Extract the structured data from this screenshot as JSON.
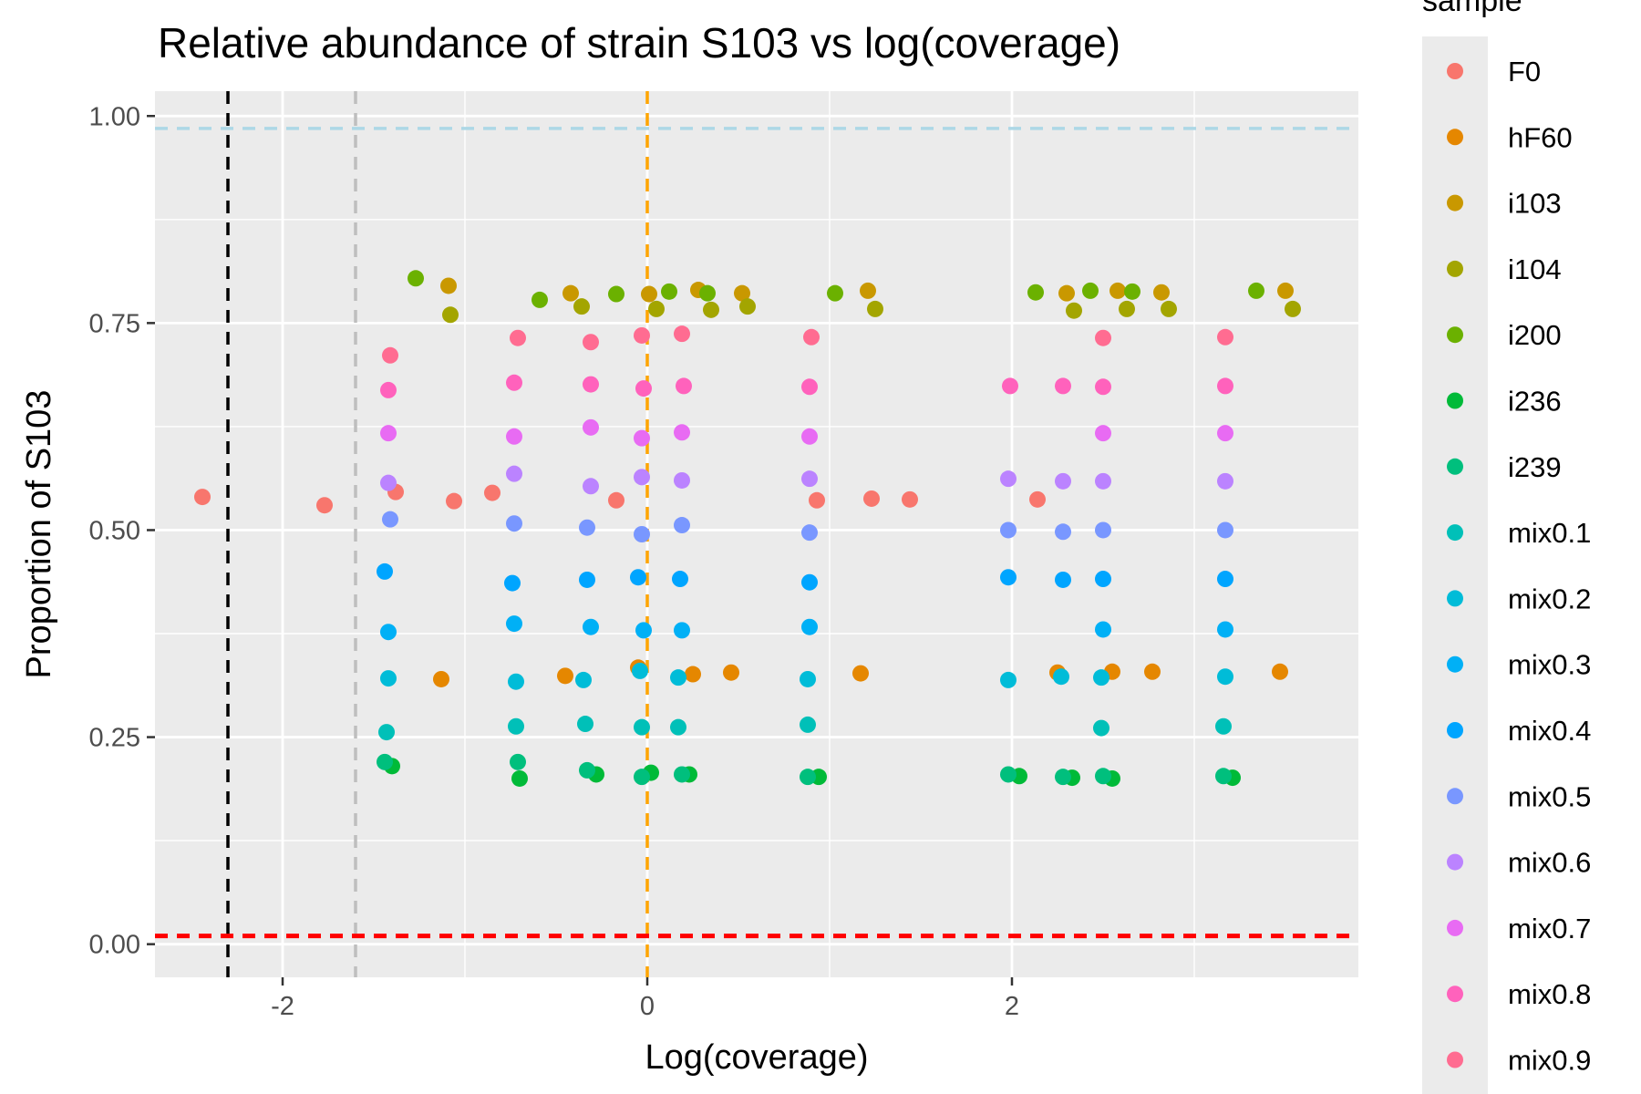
{
  "chart_data": {
    "type": "scatter",
    "title": "Relative abundance of strain S103 vs log(coverage)",
    "xlabel": "Log(coverage)",
    "ylabel": "Proportion of S103",
    "xlim": [
      -2.7,
      3.9
    ],
    "ylim": [
      -0.04,
      1.03
    ],
    "x_ticks": [
      -2,
      0,
      2
    ],
    "x_tick_labels": [
      "-2",
      "0",
      "2"
    ],
    "y_ticks": [
      0,
      0.25,
      0.5,
      0.75,
      1
    ],
    "y_tick_labels": [
      "0.00",
      "0.25",
      "0.50",
      "0.75",
      "1.00"
    ],
    "grid": true,
    "panel_background": "#ebebeb",
    "legend": {
      "title": "sample",
      "placement": "right"
    },
    "reference_lines": [
      {
        "orientation": "vertical",
        "value": -2.3,
        "color": "#000000"
      },
      {
        "orientation": "vertical",
        "value": -1.6,
        "color": "#bebebe"
      },
      {
        "orientation": "vertical",
        "value": 0.0,
        "color": "#ffa500"
      },
      {
        "orientation": "horizontal",
        "value": 0.01,
        "color": "#ff0000"
      },
      {
        "orientation": "horizontal",
        "value": 0.985,
        "color": "#add8e6"
      }
    ],
    "series": [
      {
        "name": "F0",
        "color": "#F8766D",
        "points": [
          [
            -2.44,
            0.54
          ],
          [
            -1.77,
            0.53
          ],
          [
            -1.38,
            0.546
          ],
          [
            -1.06,
            0.535
          ],
          [
            -0.85,
            0.545
          ],
          [
            -0.17,
            0.536
          ],
          [
            0.93,
            0.536
          ],
          [
            1.23,
            0.538
          ],
          [
            1.44,
            0.537
          ],
          [
            2.14,
            0.537
          ]
        ]
      },
      {
        "name": "hF60",
        "color": "#E58700",
        "points": [
          [
            -1.13,
            0.32
          ],
          [
            -0.45,
            0.324
          ],
          [
            -0.05,
            0.334
          ],
          [
            0.25,
            0.326
          ],
          [
            0.46,
            0.328
          ],
          [
            1.17,
            0.327
          ],
          [
            2.25,
            0.328
          ],
          [
            2.55,
            0.329
          ],
          [
            2.77,
            0.329
          ],
          [
            3.47,
            0.329
          ]
        ]
      },
      {
        "name": "i103",
        "color": "#C99800",
        "points": [
          [
            -1.09,
            0.795
          ],
          [
            -0.42,
            0.786
          ],
          [
            0.01,
            0.785
          ],
          [
            0.28,
            0.79
          ],
          [
            0.52,
            0.786
          ],
          [
            1.21,
            0.789
          ],
          [
            2.3,
            0.786
          ],
          [
            2.58,
            0.789
          ],
          [
            2.82,
            0.787
          ],
          [
            3.5,
            0.789
          ]
        ]
      },
      {
        "name": "i104",
        "color": "#A3A500",
        "points": [
          [
            -1.08,
            0.76
          ],
          [
            -0.36,
            0.77
          ],
          [
            0.05,
            0.767
          ],
          [
            0.35,
            0.766
          ],
          [
            0.55,
            0.77
          ],
          [
            1.25,
            0.767
          ],
          [
            2.34,
            0.765
          ],
          [
            2.63,
            0.767
          ],
          [
            2.86,
            0.767
          ],
          [
            3.54,
            0.767
          ]
        ]
      },
      {
        "name": "i200",
        "color": "#6BB100",
        "points": [
          [
            -1.27,
            0.804
          ],
          [
            -0.59,
            0.778
          ],
          [
            -0.17,
            0.785
          ],
          [
            0.12,
            0.788
          ],
          [
            0.33,
            0.786
          ],
          [
            1.03,
            0.786
          ],
          [
            2.13,
            0.787
          ],
          [
            2.43,
            0.789
          ],
          [
            2.66,
            0.788
          ],
          [
            3.34,
            0.789
          ]
        ]
      },
      {
        "name": "i236",
        "color": "#00BA38",
        "points": [
          [
            -1.4,
            0.215
          ],
          [
            -0.7,
            0.2
          ],
          [
            -0.28,
            0.205
          ],
          [
            0.02,
            0.207
          ],
          [
            0.23,
            0.205
          ],
          [
            0.94,
            0.202
          ],
          [
            2.04,
            0.203
          ],
          [
            2.33,
            0.201
          ],
          [
            2.55,
            0.2
          ],
          [
            3.21,
            0.201
          ]
        ]
      },
      {
        "name": "i239",
        "color": "#00BF7D",
        "points": [
          [
            -1.44,
            0.22
          ],
          [
            -0.71,
            0.22
          ],
          [
            -0.33,
            0.21
          ],
          [
            -0.03,
            0.202
          ],
          [
            0.19,
            0.205
          ],
          [
            0.88,
            0.202
          ],
          [
            1.98,
            0.205
          ],
          [
            2.28,
            0.202
          ],
          [
            2.5,
            0.203
          ],
          [
            3.16,
            0.203
          ]
        ]
      },
      {
        "name": "mix0.1",
        "color": "#00C0B8",
        "points": [
          [
            -1.43,
            0.256
          ],
          [
            -0.72,
            0.263
          ],
          [
            -0.34,
            0.266
          ],
          [
            -0.03,
            0.262
          ],
          [
            0.17,
            0.262
          ],
          [
            0.88,
            0.265
          ],
          [
            2.49,
            0.261
          ],
          [
            3.16,
            0.263
          ]
        ]
      },
      {
        "name": "mix0.2",
        "color": "#00BCD8",
        "points": [
          [
            -1.42,
            0.321
          ],
          [
            -0.72,
            0.317
          ],
          [
            -0.35,
            0.319
          ],
          [
            -0.04,
            0.33
          ],
          [
            0.17,
            0.322
          ],
          [
            0.88,
            0.32
          ],
          [
            1.98,
            0.319
          ],
          [
            2.27,
            0.323
          ],
          [
            2.49,
            0.322
          ],
          [
            3.17,
            0.323
          ]
        ]
      },
      {
        "name": "mix0.3",
        "color": "#00B0F6",
        "points": [
          [
            -1.42,
            0.377
          ],
          [
            -0.73,
            0.387
          ],
          [
            -0.31,
            0.383
          ],
          [
            -0.02,
            0.379
          ],
          [
            0.19,
            0.379
          ],
          [
            0.89,
            0.383
          ],
          [
            2.5,
            0.38
          ],
          [
            3.17,
            0.38
          ]
        ]
      },
      {
        "name": "mix0.4",
        "color": "#00A5FF",
        "points": [
          [
            -1.44,
            0.45
          ],
          [
            -0.74,
            0.436
          ],
          [
            -0.33,
            0.44
          ],
          [
            -0.05,
            0.443
          ],
          [
            0.18,
            0.441
          ],
          [
            0.89,
            0.437
          ],
          [
            1.98,
            0.443
          ],
          [
            2.28,
            0.44
          ],
          [
            2.5,
            0.441
          ],
          [
            3.17,
            0.441
          ]
        ]
      },
      {
        "name": "mix0.5",
        "color": "#7997FF",
        "points": [
          [
            -1.41,
            0.513
          ],
          [
            -0.73,
            0.508
          ],
          [
            -0.33,
            0.503
          ],
          [
            -0.03,
            0.495
          ],
          [
            0.19,
            0.506
          ],
          [
            0.89,
            0.497
          ],
          [
            1.98,
            0.5
          ],
          [
            2.28,
            0.498
          ],
          [
            2.5,
            0.5
          ],
          [
            3.17,
            0.5
          ]
        ]
      },
      {
        "name": "mix0.6",
        "color": "#BB83FF",
        "points": [
          [
            -1.42,
            0.557
          ],
          [
            -0.73,
            0.568
          ],
          [
            -0.31,
            0.553
          ],
          [
            -0.03,
            0.564
          ],
          [
            0.19,
            0.56
          ],
          [
            0.89,
            0.562
          ],
          [
            1.98,
            0.562
          ],
          [
            2.28,
            0.559
          ],
          [
            2.5,
            0.559
          ],
          [
            3.17,
            0.559
          ]
        ]
      },
      {
        "name": "mix0.7",
        "color": "#E86BF3",
        "points": [
          [
            -1.42,
            0.617
          ],
          [
            -0.73,
            0.613
          ],
          [
            -0.31,
            0.624
          ],
          [
            -0.03,
            0.611
          ],
          [
            0.19,
            0.618
          ],
          [
            0.89,
            0.613
          ],
          [
            2.5,
            0.617
          ],
          [
            3.17,
            0.617
          ]
        ]
      },
      {
        "name": "mix0.8",
        "color": "#FF62BC",
        "points": [
          [
            -1.42,
            0.669
          ],
          [
            -0.73,
            0.678
          ],
          [
            -0.31,
            0.676
          ],
          [
            -0.02,
            0.671
          ],
          [
            0.2,
            0.674
          ],
          [
            0.89,
            0.673
          ],
          [
            1.99,
            0.674
          ],
          [
            2.28,
            0.674
          ],
          [
            2.5,
            0.673
          ],
          [
            3.17,
            0.674
          ]
        ]
      },
      {
        "name": "mix0.9",
        "color": "#FF6C91",
        "points": [
          [
            -1.41,
            0.711
          ],
          [
            -0.71,
            0.732
          ],
          [
            -0.31,
            0.727
          ],
          [
            -0.03,
            0.735
          ],
          [
            0.19,
            0.737
          ],
          [
            0.9,
            0.733
          ],
          [
            2.5,
            0.732
          ],
          [
            3.17,
            0.733
          ]
        ]
      }
    ]
  }
}
